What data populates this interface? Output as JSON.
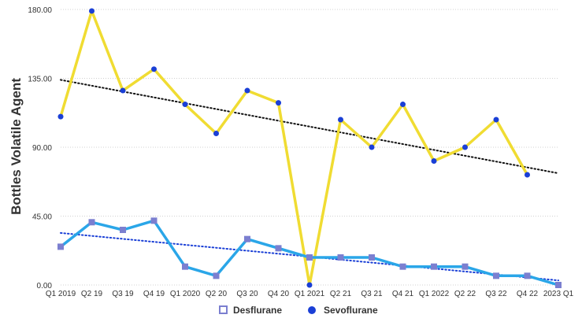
{
  "chart_data": {
    "type": "line",
    "title": "",
    "xlabel": "",
    "ylabel": "Bottles Volatile Agent",
    "ylim": [
      0,
      180
    ],
    "yticks": [
      "0.00",
      "45.00",
      "90.00",
      "135.00",
      "180.00"
    ],
    "grid": true,
    "categories": [
      "Q1 2019",
      "Q2 19",
      "Q3 19",
      "Q4 19",
      "Q1 2020",
      "Q2 20",
      "Q3 20",
      "Q4 20",
      "Q1 2021",
      "Q2 21",
      "Q3 21",
      "Q4 21",
      "Q1 2022",
      "Q2 22",
      "Q3 22",
      "Q4 22",
      "2023 Q1"
    ],
    "series": [
      {
        "name": "Sevoflurane",
        "line_color": "#f0dc32",
        "marker_color": "#1a3fd6",
        "marker": "circle",
        "values": [
          110,
          179,
          127,
          141,
          118,
          99,
          127,
          119,
          0,
          108,
          90,
          118,
          81,
          90,
          108,
          72,
          null
        ],
        "trendline": {
          "start": 134,
          "end": 73,
          "color": "#111111"
        }
      },
      {
        "name": "Desflurane",
        "line_color": "#2aa6e8",
        "marker_color": "#7b7fd0",
        "marker": "square",
        "values": [
          25,
          41,
          36,
          42,
          12,
          6,
          30,
          24,
          18,
          18,
          18,
          12,
          12,
          12,
          6,
          6,
          0
        ],
        "trendline": {
          "start": 34,
          "end": 3,
          "color": "#1a3fd6"
        }
      }
    ],
    "legend": {
      "position": "bottom",
      "items": [
        {
          "label": "Desflurane",
          "marker": "square-outline"
        },
        {
          "label": "Sevoflurane",
          "marker": "circle"
        }
      ]
    }
  }
}
